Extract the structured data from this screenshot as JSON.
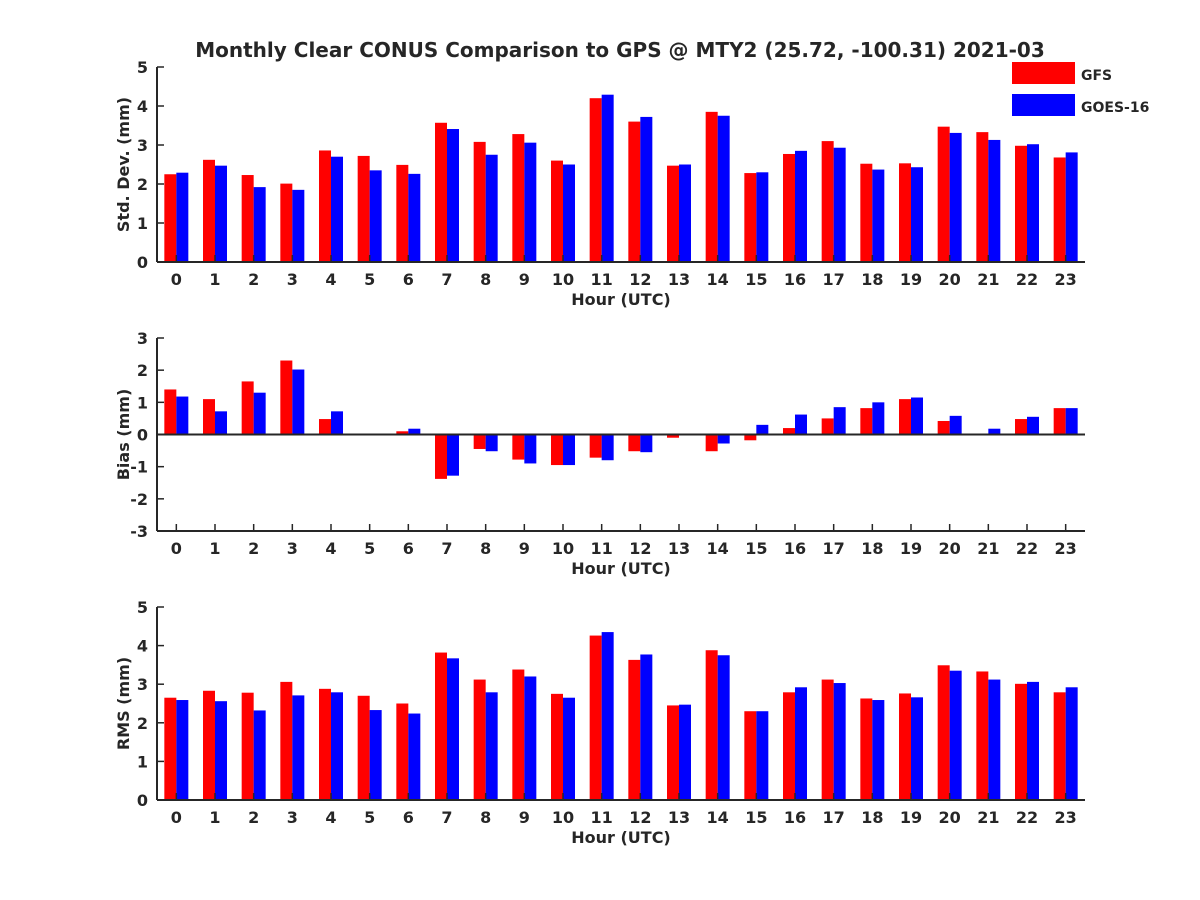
{
  "figure": {
    "title": "Monthly Clear CONUS Comparison to GPS @ MTY2 (25.72, -100.31) 2021-03"
  },
  "legend": {
    "placement": "top-right",
    "items": [
      {
        "label": "GFS",
        "color": "#ff0000"
      },
      {
        "label": "GOES-16",
        "color": "#0000ff"
      }
    ]
  },
  "chart_data": [
    {
      "type": "bar",
      "ylabel": "Std. Dev. (mm)",
      "xlabel": "Hour (UTC)",
      "categories": [
        "0",
        "1",
        "2",
        "3",
        "4",
        "5",
        "6",
        "7",
        "8",
        "9",
        "10",
        "11",
        "12",
        "13",
        "14",
        "15",
        "16",
        "17",
        "18",
        "19",
        "20",
        "21",
        "22",
        "23"
      ],
      "ylim": [
        0,
        5
      ],
      "yticks": [
        0,
        1,
        2,
        3,
        4,
        5
      ],
      "series": [
        {
          "name": "GFS",
          "color": "#ff0000",
          "values": [
            2.25,
            2.62,
            2.23,
            2.01,
            2.86,
            2.72,
            2.49,
            3.57,
            3.08,
            3.28,
            2.6,
            4.2,
            3.6,
            2.47,
            3.85,
            2.28,
            2.77,
            3.1,
            2.52,
            2.53,
            3.47,
            3.33,
            2.98,
            2.68
          ]
        },
        {
          "name": "GOES-16",
          "color": "#0000ff",
          "values": [
            2.29,
            2.47,
            1.92,
            1.85,
            2.7,
            2.35,
            2.26,
            3.41,
            2.75,
            3.06,
            2.5,
            4.29,
            3.72,
            2.5,
            3.75,
            2.3,
            2.85,
            2.93,
            2.37,
            2.43,
            3.31,
            3.13,
            3.02,
            2.81
          ]
        }
      ]
    },
    {
      "type": "bar",
      "ylabel": "Bias (mm)",
      "xlabel": "Hour (UTC)",
      "categories": [
        "0",
        "1",
        "2",
        "3",
        "4",
        "5",
        "6",
        "7",
        "8",
        "9",
        "10",
        "11",
        "12",
        "13",
        "14",
        "15",
        "16",
        "17",
        "18",
        "19",
        "20",
        "21",
        "22",
        "23"
      ],
      "ylim": [
        -3,
        3
      ],
      "yticks": [
        -3,
        -2,
        -1,
        0,
        1,
        2,
        3
      ],
      "series": [
        {
          "name": "GFS",
          "color": "#ff0000",
          "values": [
            1.4,
            1.1,
            1.65,
            2.3,
            0.48,
            0.03,
            0.1,
            -1.38,
            -0.45,
            -0.78,
            -0.95,
            -0.72,
            -0.52,
            -0.1,
            -0.52,
            -0.18,
            0.2,
            0.5,
            0.82,
            1.1,
            0.42,
            -0.03,
            0.48,
            0.82
          ]
        },
        {
          "name": "GOES-16",
          "color": "#0000ff",
          "values": [
            1.18,
            0.72,
            1.3,
            2.02,
            0.72,
            0.02,
            0.18,
            -1.28,
            -0.52,
            -0.9,
            -0.95,
            -0.8,
            -0.55,
            0.0,
            -0.28,
            0.3,
            0.62,
            0.85,
            1.0,
            1.15,
            0.58,
            0.18,
            0.55,
            0.82
          ]
        }
      ]
    },
    {
      "type": "bar",
      "ylabel": "RMS (mm)",
      "xlabel": "Hour (UTC)",
      "categories": [
        "0",
        "1",
        "2",
        "3",
        "4",
        "5",
        "6",
        "7",
        "8",
        "9",
        "10",
        "11",
        "12",
        "13",
        "14",
        "15",
        "16",
        "17",
        "18",
        "19",
        "20",
        "21",
        "22",
        "23"
      ],
      "ylim": [
        0,
        5
      ],
      "yticks": [
        0,
        1,
        2,
        3,
        4,
        5
      ],
      "series": [
        {
          "name": "GFS",
          "color": "#ff0000",
          "values": [
            2.65,
            2.83,
            2.78,
            3.06,
            2.88,
            2.7,
            2.5,
            3.82,
            3.12,
            3.38,
            2.75,
            4.26,
            3.63,
            2.45,
            3.88,
            2.3,
            2.79,
            3.12,
            2.63,
            2.76,
            3.49,
            3.33,
            3.01,
            2.79
          ]
        },
        {
          "name": "GOES-16",
          "color": "#0000ff",
          "values": [
            2.59,
            2.56,
            2.32,
            2.71,
            2.79,
            2.33,
            2.24,
            3.67,
            2.79,
            3.2,
            2.65,
            4.35,
            3.77,
            2.47,
            3.75,
            2.3,
            2.92,
            3.03,
            2.59,
            2.66,
            3.35,
            3.12,
            3.06,
            2.92
          ]
        }
      ]
    }
  ]
}
